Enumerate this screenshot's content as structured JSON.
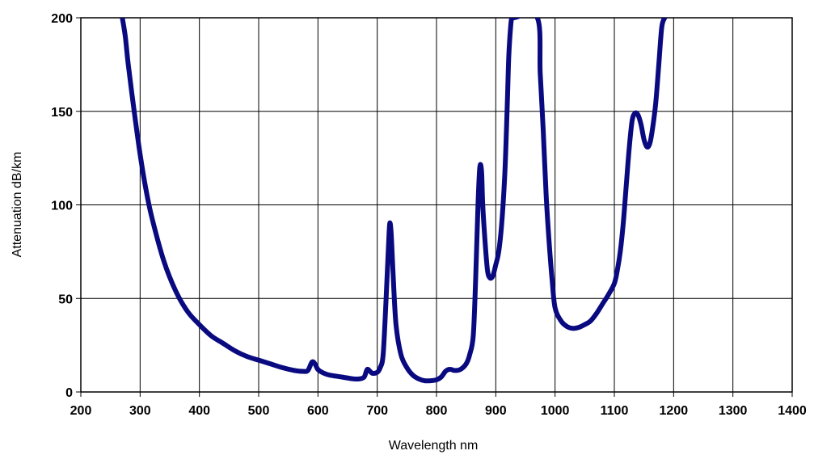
{
  "chart_data": {
    "type": "line",
    "title": "",
    "xlabel": "Wavelength nm",
    "ylabel": "Attenuation dB/km",
    "xlim": [
      200,
      1400
    ],
    "ylim": [
      0,
      200
    ],
    "xticks": [
      200,
      300,
      400,
      500,
      600,
      700,
      800,
      900,
      1000,
      1100,
      1200,
      1300,
      1400
    ],
    "yticks": [
      0,
      50,
      100,
      150,
      200
    ],
    "grid": true,
    "legend": "none",
    "colors": {
      "series": "#0a0a80",
      "grid": "#000000",
      "background": "#ffffff"
    },
    "series": [
      {
        "x": [
          270,
          275,
          280,
          290,
          300,
          310,
          320,
          340,
          360,
          380,
          400,
          420,
          440,
          460,
          480,
          500,
          520,
          540,
          560,
          575,
          583,
          590,
          595,
          600,
          610,
          620,
          640,
          660,
          670,
          678,
          683,
          688,
          692,
          700,
          705,
          710,
          715,
          720,
          722,
          724,
          728,
          732,
          740,
          750,
          760,
          770,
          780,
          790,
          800,
          808,
          815,
          820,
          825,
          830,
          840,
          850,
          856,
          862,
          866,
          870,
          873,
          876,
          878,
          882,
          886,
          890,
          895,
          900,
          905,
          910,
          915,
          918,
          920,
          922,
          925,
          927,
          930,
          970,
          975,
          980,
          985,
          990,
          995,
          1000,
          1010,
          1020,
          1030,
          1040,
          1050,
          1060,
          1070,
          1080,
          1090,
          1100,
          1105,
          1110,
          1115,
          1120,
          1125,
          1130,
          1135,
          1140,
          1145,
          1150,
          1155,
          1160,
          1165,
          1170,
          1175,
          1180,
          1185
        ],
        "y": [
          200,
          190,
          175,
          150,
          127,
          108,
          93,
          70,
          54,
          43,
          36,
          30,
          26,
          22,
          19,
          17,
          15,
          13,
          11.5,
          11,
          11.5,
          16,
          15,
          12,
          10,
          9,
          8,
          7,
          7,
          8,
          12,
          11,
          10,
          10.5,
          13,
          20,
          50,
          85,
          90,
          82,
          55,
          35,
          20,
          13,
          9,
          7,
          6,
          6,
          6.5,
          8,
          11,
          12,
          12,
          11.5,
          12,
          15,
          20,
          30,
          60,
          100,
          120,
          118,
          100,
          80,
          65,
          61,
          62,
          68,
          75,
          90,
          115,
          140,
          160,
          180,
          195,
          200,
          200,
          200,
          170,
          140,
          105,
          80,
          60,
          45,
          38,
          35,
          34,
          34.5,
          36,
          38,
          42,
          47,
          52,
          58,
          65,
          75,
          90,
          110,
          130,
          145,
          149,
          148,
          143,
          135,
          131,
          133,
          142,
          155,
          175,
          195,
          200
        ]
      }
    ]
  }
}
